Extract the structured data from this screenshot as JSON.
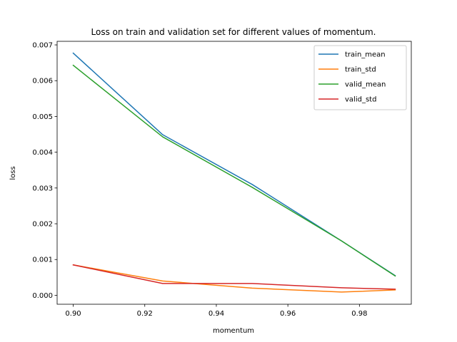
{
  "chart_data": {
    "type": "line",
    "title": "Loss on train and validation set for different values of momentum.",
    "xlabel": "momentum",
    "ylabel": "loss",
    "x": [
      0.9,
      0.925,
      0.95,
      0.975,
      0.99
    ],
    "xlim": [
      0.8955,
      0.9945
    ],
    "ylim": [
      -0.00025,
      0.0071
    ],
    "xticks": [
      0.9,
      0.92,
      0.94,
      0.96,
      0.98
    ],
    "xtick_labels": [
      "0.90",
      "0.92",
      "0.94",
      "0.96",
      "0.98"
    ],
    "yticks": [
      0.0,
      0.001,
      0.002,
      0.003,
      0.004,
      0.005,
      0.006,
      0.007
    ],
    "ytick_labels": [
      "0.000",
      "0.001",
      "0.002",
      "0.003",
      "0.004",
      "0.005",
      "0.006",
      "0.007"
    ],
    "grid": false,
    "legend_position": "top-right",
    "series": [
      {
        "name": "train_mean",
        "color": "#1f77b4",
        "values": [
          0.00677,
          0.00449,
          0.0031,
          0.00152,
          0.00055
        ]
      },
      {
        "name": "train_std",
        "color": "#ff7f0e",
        "values": [
          0.00085,
          0.0004,
          0.0002,
          9e-05,
          0.00015
        ]
      },
      {
        "name": "valid_mean",
        "color": "#2ca02c",
        "values": [
          0.00643,
          0.00443,
          0.00302,
          0.00152,
          0.00054
        ]
      },
      {
        "name": "valid_std",
        "color": "#d62728",
        "values": [
          0.00085,
          0.00033,
          0.00033,
          0.00021,
          0.00017
        ]
      }
    ]
  }
}
